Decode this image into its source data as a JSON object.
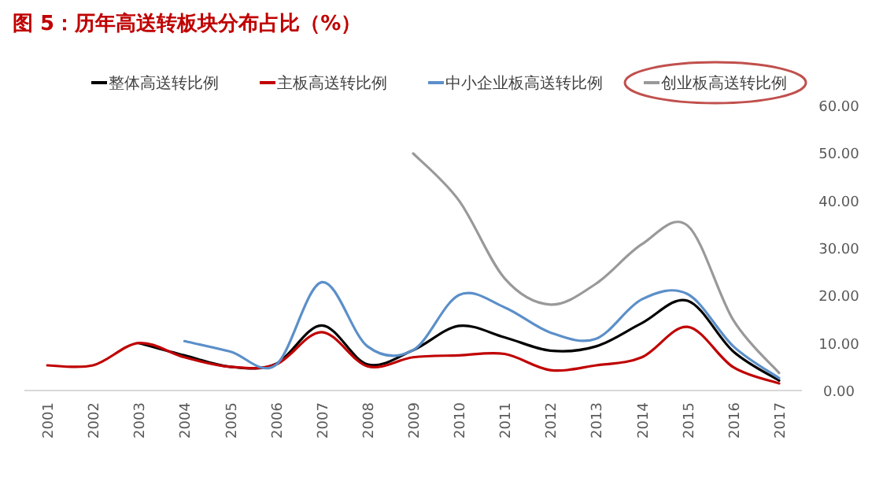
{
  "chart_data": {
    "type": "line",
    "title": "图 5：历年高送转板块分布占比（%）",
    "categories": [
      "2001",
      "2002",
      "2003",
      "2004",
      "2005",
      "2006",
      "2007",
      "2008",
      "2009",
      "2010",
      "2011",
      "2012",
      "2013",
      "2014",
      "2015",
      "2016",
      "2017"
    ],
    "series": [
      {
        "name": "整体高送转比例",
        "color": "#000000",
        "values": [
          null,
          null,
          10.0,
          7.4,
          5.0,
          5.6,
          13.7,
          5.5,
          8.5,
          13.6,
          11.2,
          8.4,
          9.3,
          14.2,
          18.9,
          8.2,
          2.1
        ]
      },
      {
        "name": "主板高送转比例",
        "color": "#c00000",
        "values": [
          5.3,
          5.3,
          10.0,
          7.0,
          5.0,
          5.5,
          12.3,
          5.1,
          7.0,
          7.4,
          7.7,
          4.3,
          5.3,
          7.0,
          13.4,
          4.9,
          1.5
        ]
      },
      {
        "name": "中小企业板高送转比例",
        "color": "#5b8fc9",
        "values": [
          null,
          null,
          null,
          10.4,
          8.2,
          5.4,
          22.8,
          9.3,
          8.5,
          20.1,
          17.5,
          12.2,
          10.9,
          19.2,
          20.3,
          9.3,
          2.6
        ]
      },
      {
        "name": "创业板高送转比例",
        "color": "#999999",
        "values": [
          null,
          null,
          null,
          null,
          null,
          null,
          null,
          null,
          49.9,
          40.0,
          23.6,
          18.1,
          22.5,
          30.8,
          34.7,
          14.8,
          3.7
        ]
      }
    ],
    "ylim": [
      0,
      60
    ],
    "yticks": [
      {
        "value": 0,
        "label": "0.00"
      },
      {
        "value": 10,
        "label": "10.00"
      },
      {
        "value": 20,
        "label": "20.00"
      },
      {
        "value": 30,
        "label": "30.00"
      },
      {
        "value": 40,
        "label": "40.00"
      },
      {
        "value": 50,
        "label": "50.00"
      },
      {
        "value": 60,
        "label": "60.00"
      }
    ],
    "legend": "top"
  }
}
